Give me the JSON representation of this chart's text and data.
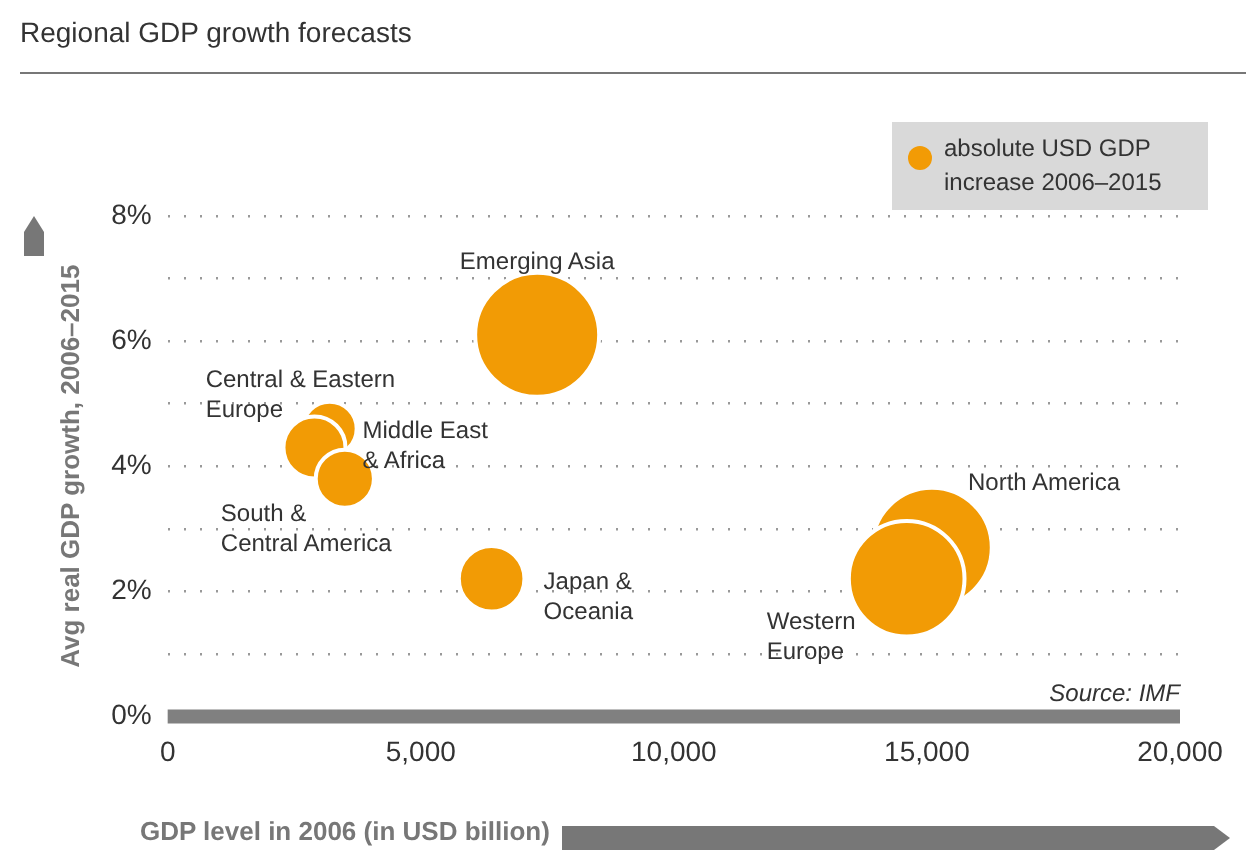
{
  "chart_data": {
    "type": "bubble",
    "subtitle": "Regional GDP growth forecasts",
    "xlabel": "GDP level in 2006 (in USD billion)",
    "ylabel": "Avg real GDP growth, 2006–2015",
    "xlim": [
      0,
      20000
    ],
    "xticks": [
      {
        "value": 0,
        "label": "0"
      },
      {
        "value": 5000,
        "label": "5,000"
      },
      {
        "value": 10000,
        "label": "10,000"
      },
      {
        "value": 15000,
        "label": "15,000"
      },
      {
        "value": 20000,
        "label": "20,000"
      }
    ],
    "ylim": [
      0,
      8
    ],
    "yticks": [
      {
        "value": 0,
        "label": "0%"
      },
      {
        "value": 1,
        "label": null
      },
      {
        "value": 2,
        "label": "2%"
      },
      {
        "value": 3,
        "label": null
      },
      {
        "value": 4,
        "label": "4%"
      },
      {
        "value": 5,
        "label": null
      },
      {
        "value": 6,
        "label": "6%"
      },
      {
        "value": 7,
        "label": null
      },
      {
        "value": 8,
        "label": "8%"
      }
    ],
    "grid": "y",
    "legend": "top right",
    "series": [
      {
        "name": "absolute USD GDP increase 2006–2015",
        "color": "#f29b05",
        "x": [
          7300,
          3200,
          2900,
          3500,
          6400,
          15100,
          14600
        ],
        "values": [
          6.1,
          4.6,
          4.3,
          3.8,
          2.2,
          2.7,
          2.2
        ],
        "sizes": [
          1,
          0.19,
          0.25,
          0.22,
          0.28,
          0.93,
          0.87
        ]
      }
    ],
    "annotations": [
      {
        "text": "Emerging Asia",
        "x": 7300,
        "y": 6.1
      },
      {
        "text": "Central & Eastern\nEurope",
        "x": 3200,
        "y": 4.6
      },
      {
        "text": "Middle East\n& Africa",
        "x": 2900,
        "y": 4.3
      },
      {
        "text": "South &\nCentral America",
        "x": 3500,
        "y": 3.8
      },
      {
        "text": "Japan &\nOceania",
        "x": 6400,
        "y": 2.2
      },
      {
        "text": "North America",
        "x": 15100,
        "y": 2.7
      },
      {
        "text": "Western\nEurope",
        "x": 14600,
        "y": 2.2
      },
      "Source: IMF"
    ]
  }
}
